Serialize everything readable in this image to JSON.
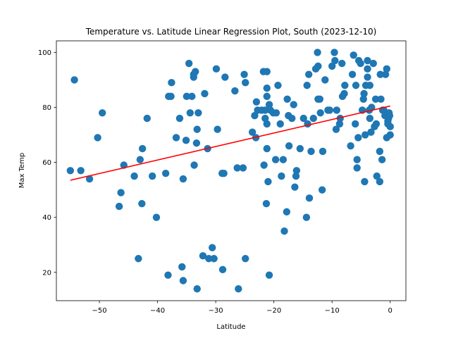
{
  "chart_data": {
    "type": "scatter",
    "title": "Temperature vs. Latitude Linear Regression Plot, South (2023-12-10)",
    "xlabel": "Latitude",
    "ylabel": "Max Temp",
    "xlim": [
      -57.4,
      2.7
    ],
    "ylim": [
      9.7,
      104.2
    ],
    "xticks": [
      -50,
      -40,
      -30,
      -20,
      -10,
      0
    ],
    "yticks": [
      20,
      40,
      60,
      80,
      100
    ],
    "grid": false,
    "colors": {
      "points": "#1f77b4",
      "regression": "#ff0000"
    },
    "regression": {
      "x": [
        -55.0,
        0.0
      ],
      "y": [
        53.5,
        80.5
      ]
    },
    "points": [
      [
        -55.0,
        57
      ],
      [
        -54.3,
        90
      ],
      [
        -53.2,
        57
      ],
      [
        -51.7,
        54
      ],
      [
        -50.3,
        69
      ],
      [
        -49.5,
        78
      ],
      [
        -46.6,
        44
      ],
      [
        -46.3,
        49
      ],
      [
        -45.8,
        59
      ],
      [
        -44.0,
        55
      ],
      [
        -43.3,
        25
      ],
      [
        -43.0,
        61
      ],
      [
        -42.7,
        45
      ],
      [
        -42.6,
        65
      ],
      [
        -41.8,
        76
      ],
      [
        -40.9,
        55
      ],
      [
        -40.2,
        40
      ],
      [
        -38.6,
        56
      ],
      [
        -38.2,
        19
      ],
      [
        -38.1,
        84
      ],
      [
        -37.7,
        84
      ],
      [
        -37.6,
        89
      ],
      [
        -36.8,
        69
      ],
      [
        -36.2,
        76
      ],
      [
        -35.8,
        22
      ],
      [
        -35.6,
        17
      ],
      [
        -35.6,
        54
      ],
      [
        -35.1,
        68
      ],
      [
        -35.0,
        84
      ],
      [
        -34.6,
        96
      ],
      [
        -34.4,
        78
      ],
      [
        -34.1,
        84
      ],
      [
        -33.8,
        91
      ],
      [
        -33.8,
        92
      ],
      [
        -33.7,
        59
      ],
      [
        -33.5,
        93
      ],
      [
        -33.3,
        67
      ],
      [
        -33.2,
        72
      ],
      [
        -33.2,
        14
      ],
      [
        -33.0,
        78
      ],
      [
        -32.2,
        26
      ],
      [
        -31.9,
        85
      ],
      [
        -31.4,
        65
      ],
      [
        -31.2,
        25
      ],
      [
        -30.6,
        29
      ],
      [
        -30.3,
        25
      ],
      [
        -29.9,
        94
      ],
      [
        -29.7,
        72
      ],
      [
        -28.9,
        56
      ],
      [
        -28.8,
        21
      ],
      [
        -28.6,
        56
      ],
      [
        -28.4,
        91
      ],
      [
        -26.7,
        86
      ],
      [
        -26.3,
        58
      ],
      [
        -26.1,
        14
      ],
      [
        -25.3,
        58
      ],
      [
        -25.1,
        92
      ],
      [
        -24.9,
        89
      ],
      [
        -24.9,
        25
      ],
      [
        -23.7,
        71
      ],
      [
        -23.3,
        77
      ],
      [
        -23.1,
        69
      ],
      [
        -23.0,
        82
      ],
      [
        -22.8,
        79
      ],
      [
        -22.1,
        79
      ],
      [
        -21.8,
        93
      ],
      [
        -21.7,
        59
      ],
      [
        -21.5,
        76
      ],
      [
        -21.5,
        79
      ],
      [
        -21.3,
        45
      ],
      [
        -21.2,
        65
      ],
      [
        -21.2,
        87
      ],
      [
        -21.2,
        74
      ],
      [
        -21.2,
        84
      ],
      [
        -21.2,
        93
      ],
      [
        -21.0,
        53
      ],
      [
        -20.8,
        19
      ],
      [
        -20.8,
        81
      ],
      [
        -20.6,
        79
      ],
      [
        -20.1,
        78
      ],
      [
        -19.7,
        61
      ],
      [
        -19.6,
        78
      ],
      [
        -19.3,
        88
      ],
      [
        -18.9,
        74
      ],
      [
        -18.7,
        55
      ],
      [
        -18.4,
        61
      ],
      [
        -18.2,
        35
      ],
      [
        -17.8,
        42
      ],
      [
        -17.7,
        83
      ],
      [
        -17.5,
        77
      ],
      [
        -17.4,
        66
      ],
      [
        -16.9,
        76
      ],
      [
        -16.6,
        81
      ],
      [
        -16.4,
        51
      ],
      [
        -16.2,
        55
      ],
      [
        -16.1,
        57
      ],
      [
        -15.5,
        65
      ],
      [
        -14.9,
        76
      ],
      [
        -14.4,
        40
      ],
      [
        -14.3,
        88
      ],
      [
        -14.2,
        74
      ],
      [
        -14.0,
        92
      ],
      [
        -13.9,
        47
      ],
      [
        -13.6,
        64
      ],
      [
        -13.2,
        76
      ],
      [
        -12.8,
        94
      ],
      [
        -12.5,
        100
      ],
      [
        -12.4,
        95
      ],
      [
        -12.4,
        83
      ],
      [
        -12.1,
        83
      ],
      [
        -12.0,
        78
      ],
      [
        -11.7,
        50
      ],
      [
        -11.6,
        64
      ],
      [
        -11.2,
        90
      ],
      [
        -10.7,
        79
      ],
      [
        -10.4,
        79
      ],
      [
        -10.0,
        95
      ],
      [
        -9.6,
        100
      ],
      [
        -9.5,
        97
      ],
      [
        -9.3,
        72
      ],
      [
        -9.2,
        79
      ],
      [
        -8.7,
        74
      ],
      [
        -8.6,
        76
      ],
      [
        -8.3,
        96
      ],
      [
        -8.2,
        84
      ],
      [
        -7.9,
        85
      ],
      [
        -7.8,
        88
      ],
      [
        -6.8,
        66
      ],
      [
        -6.5,
        92
      ],
      [
        -6.3,
        99
      ],
      [
        -6.0,
        74
      ],
      [
        -5.9,
        88
      ],
      [
        -5.7,
        61
      ],
      [
        -5.7,
        58
      ],
      [
        -5.5,
        69
      ],
      [
        -5.4,
        97
      ],
      [
        -5.1,
        96
      ],
      [
        -4.8,
        79
      ],
      [
        -4.6,
        83
      ],
      [
        -4.5,
        85
      ],
      [
        -4.4,
        53
      ],
      [
        -4.3,
        70
      ],
      [
        -4.2,
        88
      ],
      [
        -3.9,
        97
      ],
      [
        -3.9,
        94
      ],
      [
        -3.9,
        91
      ],
      [
        -3.6,
        79
      ],
      [
        -3.5,
        76
      ],
      [
        -3.5,
        88
      ],
      [
        -3.3,
        71
      ],
      [
        -3.2,
        80
      ],
      [
        -2.9,
        96
      ],
      [
        -2.7,
        73
      ],
      [
        -2.5,
        83
      ],
      [
        -2.4,
        74
      ],
      [
        -2.3,
        55
      ],
      [
        -1.8,
        64
      ],
      [
        -1.8,
        53
      ],
      [
        -1.7,
        92
      ],
      [
        -1.6,
        83
      ],
      [
        -1.4,
        61
      ],
      [
        -1.3,
        79
      ],
      [
        -1.1,
        79
      ],
      [
        -0.9,
        77
      ],
      [
        -0.8,
        92
      ],
      [
        -0.6,
        94
      ],
      [
        -0.6,
        69
      ],
      [
        -0.5,
        77
      ],
      [
        -0.4,
        75
      ],
      [
        -0.4,
        74
      ],
      [
        -0.3,
        76
      ],
      [
        -0.2,
        78
      ],
      [
        -0.1,
        77
      ],
      [
        0.0,
        73
      ],
      [
        0.0,
        70
      ]
    ]
  }
}
